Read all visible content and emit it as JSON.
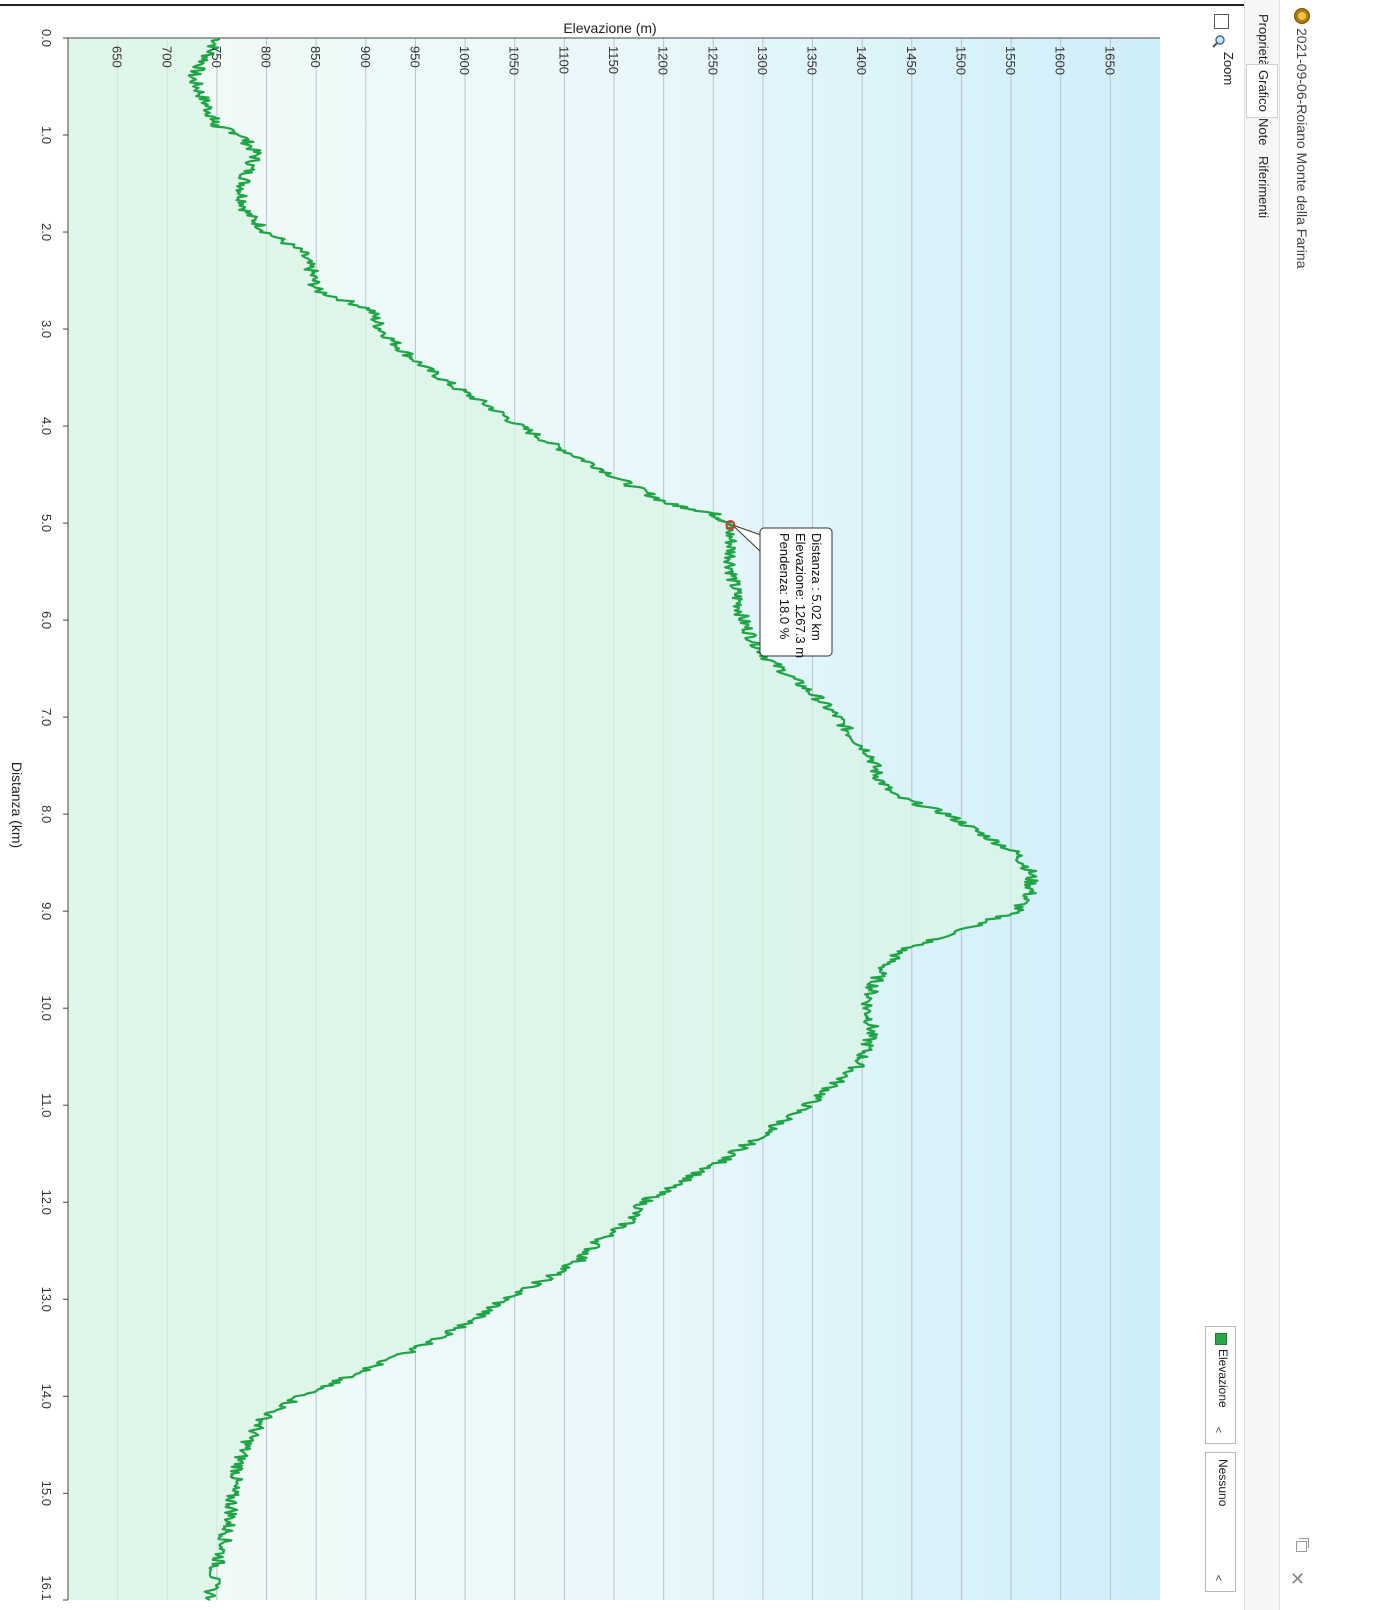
{
  "window": {
    "title": "2021-09-06-Roiano Monte della Farina",
    "icon": "app-globe-icon"
  },
  "tabs": [
    {
      "label": "Proprietà",
      "active": false
    },
    {
      "label": "Grafico",
      "active": true
    },
    {
      "label": "Note",
      "active": false
    },
    {
      "label": "Riferimenti",
      "active": false
    }
  ],
  "zoom": {
    "label": "Zoom",
    "checked": false
  },
  "series_selector": {
    "value": "Elevazione"
  },
  "secondary_selector": {
    "value": "Nessuno"
  },
  "colors": {
    "line": "#1fa446",
    "fill": "#d9f4e4",
    "grid": "#b8c4c8",
    "background_left": "#eefaf3",
    "background_right": "#cdeefa"
  },
  "tooltip": {
    "distance": "Distanza : 5.02 km",
    "elevation": "Elevazione: 1267.3 m",
    "slope": "Pendenza: 18.0 %",
    "at_km": 5.02,
    "at_m": 1267.3
  },
  "chart_data": {
    "type": "area",
    "title": "",
    "xlabel": "Distanza  (km)",
    "ylabel": "Elevazione (m)",
    "xlim": [
      0.0,
      16.1
    ],
    "ylim": [
      600,
      1700
    ],
    "x_ticks": [
      "0.0",
      "1.0",
      "2.0",
      "3.0",
      "4.0",
      "5.0",
      "6.0",
      "7.0",
      "8.0",
      "9.0",
      "10.0",
      "11.0",
      "12.0",
      "13.0",
      "14.0",
      "15.0",
      "16.1"
    ],
    "x_tick_values": [
      0,
      1,
      2,
      3,
      4,
      5,
      6,
      7,
      8,
      9,
      10,
      11,
      12,
      13,
      14,
      15,
      16.1
    ],
    "y_ticks": [
      "650",
      "700",
      "750",
      "800",
      "850",
      "900",
      "950",
      "1000",
      "1050",
      "1100",
      "1150",
      "1200",
      "1250",
      "1300",
      "1350",
      "1400",
      "1450",
      "1500",
      "1550",
      "1600",
      "1650"
    ],
    "y_tick_values": [
      650,
      700,
      750,
      800,
      850,
      900,
      950,
      1000,
      1050,
      1100,
      1150,
      1200,
      1250,
      1300,
      1350,
      1400,
      1450,
      1500,
      1550,
      1600,
      1650
    ],
    "legend": "bottom-right",
    "grid": true,
    "series": [
      {
        "name": "Elevazione",
        "x": [
          0.0,
          0.2,
          0.4,
          0.6,
          0.8,
          0.9,
          1.0,
          1.2,
          1.4,
          1.6,
          1.8,
          2.0,
          2.2,
          2.4,
          2.6,
          2.8,
          3.0,
          3.2,
          3.4,
          3.6,
          3.8,
          4.0,
          4.2,
          4.4,
          4.6,
          4.8,
          4.9,
          5.0,
          5.2,
          5.4,
          5.6,
          5.8,
          6.0,
          6.2,
          6.4,
          6.6,
          6.8,
          7.0,
          7.2,
          7.4,
          7.6,
          7.8,
          8.0,
          8.2,
          8.4,
          8.6,
          8.8,
          9.0,
          9.2,
          9.4,
          9.6,
          9.8,
          10.0,
          10.2,
          10.4,
          10.6,
          10.8,
          11.0,
          11.2,
          11.4,
          11.6,
          11.8,
          12.0,
          12.2,
          12.4,
          12.6,
          12.8,
          13.0,
          13.2,
          13.4,
          13.6,
          13.8,
          14.0,
          14.2,
          14.4,
          14.6,
          14.8,
          15.0,
          15.2,
          15.4,
          15.6,
          15.8,
          16.1
        ],
        "y": [
          752,
          740,
          725,
          735,
          745,
          748,
          775,
          790,
          780,
          775,
          780,
          800,
          835,
          845,
          850,
          905,
          915,
          935,
          960,
          990,
          1025,
          1055,
          1090,
          1130,
          1165,
          1205,
          1250,
          1265,
          1268,
          1268,
          1270,
          1275,
          1280,
          1290,
          1305,
          1330,
          1355,
          1375,
          1390,
          1410,
          1415,
          1430,
          1485,
          1520,
          1555,
          1570,
          1570,
          1555,
          1500,
          1440,
          1420,
          1410,
          1405,
          1410,
          1405,
          1395,
          1370,
          1345,
          1315,
          1285,
          1255,
          1215,
          1180,
          1165,
          1135,
          1115,
          1080,
          1040,
          1010,
          975,
          930,
          880,
          835,
          800,
          785,
          775,
          770,
          765,
          765,
          760,
          755,
          748,
          743
        ]
      }
    ]
  }
}
